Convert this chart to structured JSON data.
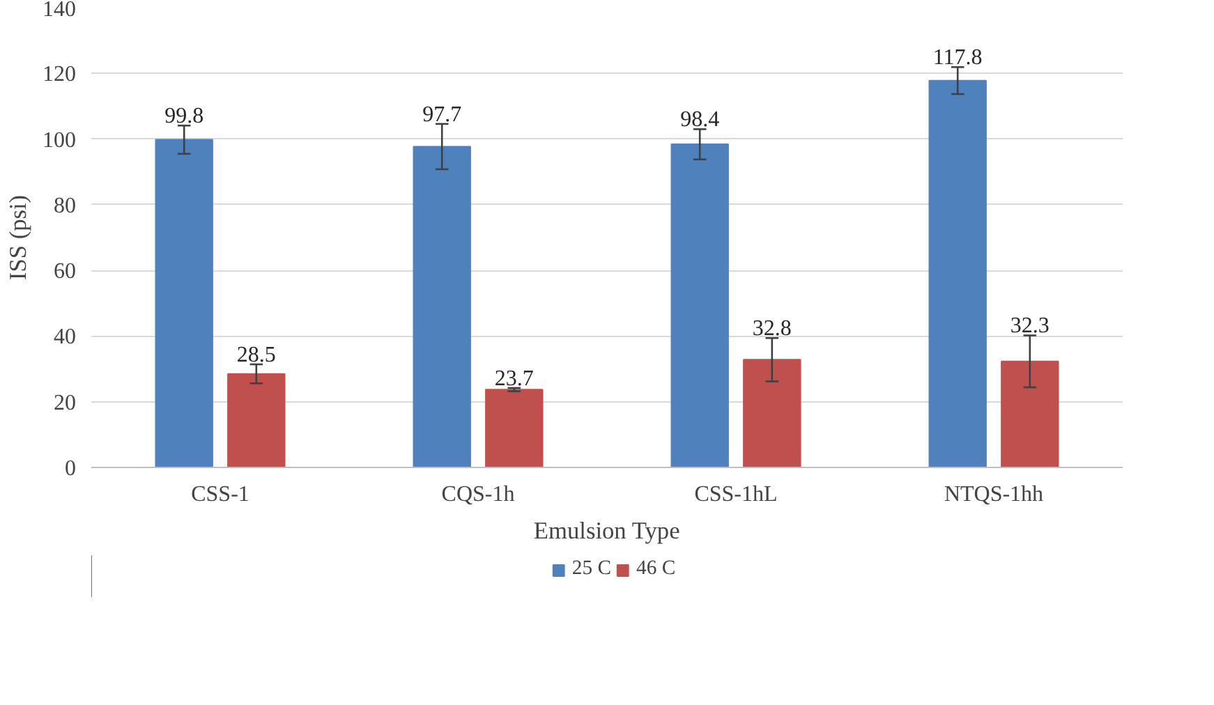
{
  "chart_data": {
    "type": "bar",
    "xlabel": "Emulsion Type",
    "ylabel": "ISS (psi)",
    "categories": [
      "CSS-1",
      "CQS-1h",
      "CSS-1hL",
      "NTQS-1hh"
    ],
    "series": [
      {
        "name": "25 C",
        "color": "#4f81bd",
        "values": [
          99.8,
          97.7,
          98.4,
          117.8
        ],
        "errors": [
          4.3,
          6.9,
          4.6,
          4.1
        ]
      },
      {
        "name": "46 C",
        "color": "#c0504d",
        "values": [
          28.5,
          23.7,
          32.8,
          32.3
        ],
        "errors": [
          2.9,
          0.5,
          6.6,
          7.9
        ]
      }
    ],
    "ylim": [
      0,
      140
    ],
    "yticks": [
      0,
      20,
      40,
      60,
      80,
      100,
      120,
      140
    ],
    "grid": "y",
    "legend": "bottom",
    "data_labels": true
  }
}
